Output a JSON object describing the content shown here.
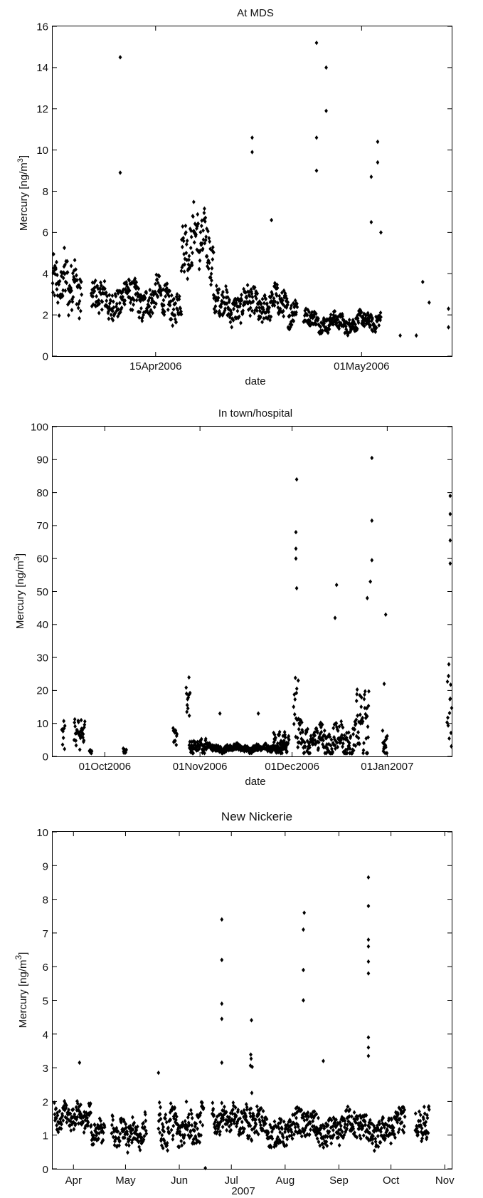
{
  "chart_data": [
    {
      "type": "scatter",
      "title": "At MDS",
      "xlabel": "date",
      "ylabel": "Mercury [ng/m³]",
      "ylim": [
        0,
        16
      ],
      "yticks": [
        0,
        2,
        4,
        6,
        8,
        10,
        12,
        14,
        16
      ],
      "xlim": [
        "2006-04-07",
        "2006-05-08"
      ],
      "xticks": [
        {
          "date": "2006-04-15",
          "label": "15Apr2006"
        },
        {
          "date": "2006-05-01",
          "label": "01May2006"
        }
      ],
      "marker": "diamond",
      "color": "#000000",
      "outliers": [
        {
          "x": "2006-04-12 06:00",
          "y": 14.5
        },
        {
          "x": "2006-04-12 06:00",
          "y": 8.9
        },
        {
          "x": "2006-04-22 12:00",
          "y": 10.6
        },
        {
          "x": "2006-04-22 12:00",
          "y": 9.9
        },
        {
          "x": "2006-04-24 00:00",
          "y": 6.6
        },
        {
          "x": "2006-04-27 12:00",
          "y": 15.2
        },
        {
          "x": "2006-04-28 06:00",
          "y": 14.0
        },
        {
          "x": "2006-04-28 06:00",
          "y": 11.9
        },
        {
          "x": "2006-04-27 12:00",
          "y": 10.6
        },
        {
          "x": "2006-04-27 12:00",
          "y": 9.0
        },
        {
          "x": "2006-05-02 06:00",
          "y": 10.4
        },
        {
          "x": "2006-05-02 06:00",
          "y": 9.4
        },
        {
          "x": "2006-05-01 18:00",
          "y": 8.7
        },
        {
          "x": "2006-05-01 18:00",
          "y": 6.5
        },
        {
          "x": "2006-05-02 12:00",
          "y": 6.0
        },
        {
          "x": "2006-05-04 00:00",
          "y": 1.0
        },
        {
          "x": "2006-05-05 06:00",
          "y": 1.0
        },
        {
          "x": "2006-05-05 18:00",
          "y": 3.6
        },
        {
          "x": "2006-05-06 06:00",
          "y": 2.6
        },
        {
          "x": "2006-05-07 18:00",
          "y": 2.3
        },
        {
          "x": "2006-05-07 18:00",
          "y": 1.4
        }
      ],
      "segments": [
        {
          "x0": "2006-04-07 00:00",
          "x1": "2006-04-09 06:00",
          "base": 3.2,
          "spread": 1.8,
          "trend": 0.4
        },
        {
          "x0": "2006-04-10 00:00",
          "x1": "2006-04-17 00:00",
          "base": 2.6,
          "spread": 1.2,
          "trend": 0.2
        },
        {
          "x0": "2006-04-17 00:00",
          "x1": "2006-04-19 12:00",
          "base": 4.6,
          "spread": 1.8,
          "trend": 1.2
        },
        {
          "x0": "2006-04-19 12:00",
          "x1": "2006-04-26 00:00",
          "base": 2.4,
          "spread": 1.1,
          "trend": 0.1
        },
        {
          "x0": "2006-04-26 12:00",
          "x1": "2006-05-02 12:00",
          "base": 1.8,
          "spread": 0.6,
          "trend": -0.2
        }
      ]
    },
    {
      "type": "scatter",
      "title": "In town/hospital",
      "xlabel": "date",
      "ylabel": "Mercury [ng/m³]",
      "ylim": [
        0,
        100
      ],
      "yticks": [
        0,
        10,
        20,
        30,
        40,
        50,
        60,
        70,
        80,
        90,
        100
      ],
      "xlim": [
        "2006-09-14",
        "2007-01-22"
      ],
      "xticks": [
        {
          "date": "2006-10-01",
          "label": "01Oct2006"
        },
        {
          "date": "2006-11-01",
          "label": "01Nov2006"
        },
        {
          "date": "2006-12-01",
          "label": "01Dec2006"
        },
        {
          "date": "2007-01-01",
          "label": "01Jan2007"
        }
      ],
      "marker": "diamond",
      "color": "#000000",
      "outliers": [
        {
          "x": "2006-12-02 12:00",
          "y": 84
        },
        {
          "x": "2006-12-02 06:00",
          "y": 68
        },
        {
          "x": "2006-12-02 06:00",
          "y": 63
        },
        {
          "x": "2006-12-02 06:00",
          "y": 60
        },
        {
          "x": "2006-12-02 12:00",
          "y": 51
        },
        {
          "x": "2006-12-27 00:00",
          "y": 90.5
        },
        {
          "x": "2006-12-27 00:00",
          "y": 71.5
        },
        {
          "x": "2006-12-27 00:00",
          "y": 59.5
        },
        {
          "x": "2006-12-26 12:00",
          "y": 53
        },
        {
          "x": "2006-12-25 12:00",
          "y": 48
        },
        {
          "x": "2006-12-15 12:00",
          "y": 52
        },
        {
          "x": "2006-12-15 00:00",
          "y": 42
        },
        {
          "x": "2006-12-31 12:00",
          "y": 43
        },
        {
          "x": "2007-01-21 12:00",
          "y": 79
        },
        {
          "x": "2007-01-21 12:00",
          "y": 73.5
        },
        {
          "x": "2007-01-21 12:00",
          "y": 65.5
        },
        {
          "x": "2007-01-21 12:00",
          "y": 58.5
        },
        {
          "x": "2006-11-20 00:00",
          "y": 13
        },
        {
          "x": "2006-11-07 12:00",
          "y": 13
        },
        {
          "x": "2006-12-31 00:00",
          "y": 22
        }
      ],
      "segments": [
        {
          "x0": "2006-09-17 00:00",
          "x1": "2006-09-18 00:00",
          "base": 7,
          "spread": 6,
          "trend": 0
        },
        {
          "x0": "2006-09-21 00:00",
          "x1": "2006-09-24 12:00",
          "base": 7,
          "spread": 6,
          "trend": 0
        },
        {
          "x0": "2006-09-26 00:00",
          "x1": "2006-09-26 18:00",
          "base": 1.5,
          "spread": 1,
          "trend": 0
        },
        {
          "x0": "2006-10-07 00:00",
          "x1": "2006-10-08 00:00",
          "base": 1.5,
          "spread": 1.2,
          "trend": 0
        },
        {
          "x0": "2006-10-23 06:00",
          "x1": "2006-10-24 12:00",
          "base": 6,
          "spread": 4,
          "trend": 0
        },
        {
          "x0": "2006-10-27 12:00",
          "x1": "2006-10-28 18:00",
          "base": 18,
          "spread": 7,
          "trend": 0
        },
        {
          "x0": "2006-10-28 12:00",
          "x1": "2006-11-03 00:00",
          "base": 3,
          "spread": 3,
          "trend": 0
        },
        {
          "x0": "2006-11-03 00:00",
          "x1": "2006-11-29 00:00",
          "base": 2.5,
          "spread": 1.5,
          "trend": 0
        },
        {
          "x0": "2006-11-25 00:00",
          "x1": "2006-11-30 00:00",
          "base": 4,
          "spread": 4,
          "trend": 0
        },
        {
          "x0": "2006-12-01 12:00",
          "x1": "2006-12-03 00:00",
          "base": 12,
          "spread": 15,
          "trend": 0
        },
        {
          "x0": "2006-12-03 00:00",
          "x1": "2006-12-22 00:00",
          "base": 5,
          "spread": 7,
          "trend": 0
        },
        {
          "x0": "2006-12-22 00:00",
          "x1": "2006-12-26 00:00",
          "base": 10,
          "spread": 12,
          "trend": 0
        },
        {
          "x0": "2006-12-30 12:00",
          "x1": "2007-01-01 00:00",
          "base": 4,
          "spread": 5,
          "trend": 0
        },
        {
          "x0": "2007-01-20 12:00",
          "x1": "2007-01-22 00:00",
          "base": 15,
          "spread": 16,
          "trend": 0
        }
      ]
    },
    {
      "type": "scatter",
      "title": "New Nickerie",
      "xlabel": "2007",
      "ylabel": "Mercury [ng/m³]",
      "ylim": [
        0,
        10
      ],
      "yticks": [
        0,
        1,
        2,
        3,
        4,
        5,
        6,
        7,
        8,
        9,
        10
      ],
      "xlim": [
        "2007-03-20",
        "2007-11-05"
      ],
      "xticks": [
        {
          "date": "2007-04-01",
          "label": "Apr"
        },
        {
          "date": "2007-05-01",
          "label": "May"
        },
        {
          "date": "2007-06-01",
          "label": "Jun"
        },
        {
          "date": "2007-07-01",
          "label": "Jul"
        },
        {
          "date": "2007-08-01",
          "label": "Aug"
        },
        {
          "date": "2007-09-01",
          "label": "Sep"
        },
        {
          "date": "2007-10-01",
          "label": "Oct"
        },
        {
          "date": "2007-11-01",
          "label": "Nov"
        }
      ],
      "marker": "diamond",
      "color": "#000000",
      "outliers": [
        {
          "x": "2007-04-04 12:00",
          "y": 3.15
        },
        {
          "x": "2007-05-20 00:00",
          "y": 2.85
        },
        {
          "x": "2007-06-25 12:00",
          "y": 7.4
        },
        {
          "x": "2007-06-25 12:00",
          "y": 6.2
        },
        {
          "x": "2007-06-25 12:00",
          "y": 4.9
        },
        {
          "x": "2007-06-25 12:00",
          "y": 4.45
        },
        {
          "x": "2007-06-25 12:00",
          "y": 3.15
        },
        {
          "x": "2007-08-12 00:00",
          "y": 7.6
        },
        {
          "x": "2007-08-11 12:00",
          "y": 7.1
        },
        {
          "x": "2007-08-11 12:00",
          "y": 5.9
        },
        {
          "x": "2007-08-11 12:00",
          "y": 5.0
        },
        {
          "x": "2007-08-23 00:00",
          "y": 3.2
        },
        {
          "x": "2007-09-18 00:00",
          "y": 8.65
        },
        {
          "x": "2007-09-18 00:00",
          "y": 7.8
        },
        {
          "x": "2007-09-18 00:00",
          "y": 6.8
        },
        {
          "x": "2007-09-18 00:00",
          "y": 6.6
        },
        {
          "x": "2007-09-18 00:00",
          "y": 6.15
        },
        {
          "x": "2007-09-18 00:00",
          "y": 5.8
        },
        {
          "x": "2007-09-18 00:00",
          "y": 3.9
        },
        {
          "x": "2007-09-18 00:00",
          "y": 3.6
        },
        {
          "x": "2007-09-18 00:00",
          "y": 3.35
        },
        {
          "x": "2007-06-16 00:00",
          "y": 0.02
        }
      ],
      "segments": [
        {
          "x0": "2007-03-21 00:00",
          "x1": "2007-04-11 00:00",
          "base": 1.55,
          "spread": 0.5,
          "trend": 0
        },
        {
          "x0": "2007-04-11 00:00",
          "x1": "2007-04-19 00:00",
          "base": 1.1,
          "spread": 0.45,
          "trend": 0
        },
        {
          "x0": "2007-04-23 00:00",
          "x1": "2007-05-13 00:00",
          "base": 1.05,
          "spread": 0.6,
          "trend": 0
        },
        {
          "x0": "2007-05-20 00:00",
          "x1": "2007-06-15 00:00",
          "base": 1.25,
          "spread": 0.8,
          "trend": 0
        },
        {
          "x0": "2007-06-20 00:00",
          "x1": "2007-07-10 00:00",
          "base": 1.45,
          "spread": 0.55,
          "trend": 0
        },
        {
          "x0": "2007-07-10 00:00",
          "x1": "2007-07-16 00:00",
          "base": 1.3,
          "spread": 0.6,
          "trend": 0
        },
        {
          "x0": "2007-07-12 00:00",
          "x1": "2007-07-13 00:00",
          "base": 3.4,
          "spread": 1.3,
          "trend": 0
        },
        {
          "x0": "2007-07-16 00:00",
          "x1": "2007-10-09 00:00",
          "base": 1.2,
          "spread": 0.65,
          "trend": 0
        },
        {
          "x0": "2007-10-15 00:00",
          "x1": "2007-10-23 00:00",
          "base": 1.3,
          "spread": 0.6,
          "trend": 0
        }
      ]
    }
  ]
}
